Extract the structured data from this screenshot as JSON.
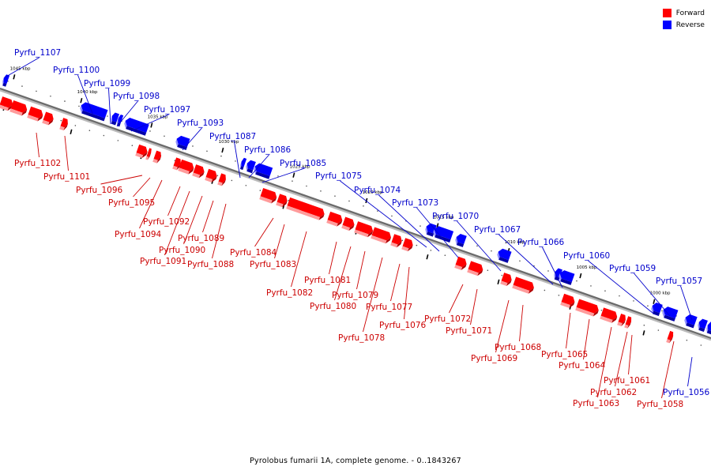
{
  "legend": {
    "forward_label": "Forward",
    "reverse_label": "Reverse",
    "forward_color": "#ff0000",
    "reverse_color": "#0000ff"
  },
  "caption": "Pyrolobus fumarii 1A, complete genome. - 0..1843267",
  "scale_labels": [
    "1045 kbp",
    "1040 kbp",
    "1035 kbp",
    "1030 kbp",
    "1025 kbp",
    "1020 kbp",
    "1015 kbp",
    "1010 kbp",
    "1005 kbp",
    "1000 kbp"
  ],
  "genes": [
    {
      "name": "Pyrfu_1107",
      "strand": "reverse"
    },
    {
      "name": "Pyrfu_1102",
      "strand": "forward"
    },
    {
      "name": "Pyrfu_1101",
      "strand": "forward"
    },
    {
      "name": "Pyrfu_1100",
      "strand": "reverse"
    },
    {
      "name": "Pyrfu_1099",
      "strand": "reverse"
    },
    {
      "name": "Pyrfu_1098",
      "strand": "reverse"
    },
    {
      "name": "Pyrfu_1097",
      "strand": "reverse"
    },
    {
      "name": "Pyrfu_1096",
      "strand": "forward"
    },
    {
      "name": "Pyrfu_1095",
      "strand": "forward"
    },
    {
      "name": "Pyrfu_1094",
      "strand": "forward"
    },
    {
      "name": "Pyrfu_1093",
      "strand": "reverse"
    },
    {
      "name": "Pyrfu_1092",
      "strand": "forward"
    },
    {
      "name": "Pyrfu_1091",
      "strand": "forward"
    },
    {
      "name": "Pyrfu_1090",
      "strand": "forward"
    },
    {
      "name": "Pyrfu_1089",
      "strand": "forward"
    },
    {
      "name": "Pyrfu_1088",
      "strand": "forward"
    },
    {
      "name": "Pyrfu_1087",
      "strand": "reverse"
    },
    {
      "name": "Pyrfu_1086",
      "strand": "reverse"
    },
    {
      "name": "Pyrfu_1085",
      "strand": "reverse"
    },
    {
      "name": "Pyrfu_1084",
      "strand": "forward"
    },
    {
      "name": "Pyrfu_1083",
      "strand": "forward"
    },
    {
      "name": "Pyrfu_1082",
      "strand": "forward"
    },
    {
      "name": "Pyrfu_1081",
      "strand": "forward"
    },
    {
      "name": "Pyrfu_1080",
      "strand": "forward"
    },
    {
      "name": "Pyrfu_1079",
      "strand": "forward"
    },
    {
      "name": "Pyrfu_1078",
      "strand": "forward"
    },
    {
      "name": "Pyrfu_1077",
      "strand": "forward"
    },
    {
      "name": "Pyrfu_1076",
      "strand": "forward"
    },
    {
      "name": "Pyrfu_1075",
      "strand": "reverse"
    },
    {
      "name": "Pyrfu_1074",
      "strand": "reverse"
    },
    {
      "name": "Pyrfu_1073",
      "strand": "reverse"
    },
    {
      "name": "Pyrfu_1072",
      "strand": "forward"
    },
    {
      "name": "Pyrfu_1071",
      "strand": "forward"
    },
    {
      "name": "Pyrfu_1070",
      "strand": "reverse"
    },
    {
      "name": "Pyrfu_1069",
      "strand": "forward"
    },
    {
      "name": "Pyrfu_1068",
      "strand": "forward"
    },
    {
      "name": "Pyrfu_1067",
      "strand": "reverse"
    },
    {
      "name": "Pyrfu_1066",
      "strand": "reverse"
    },
    {
      "name": "Pyrfu_1065",
      "strand": "forward"
    },
    {
      "name": "Pyrfu_1064",
      "strand": "forward"
    },
    {
      "name": "Pyrfu_1063",
      "strand": "forward"
    },
    {
      "name": "Pyrfu_1062",
      "strand": "forward"
    },
    {
      "name": "Pyrfu_1061",
      "strand": "forward"
    },
    {
      "name": "Pyrfu_1060",
      "strand": "reverse"
    },
    {
      "name": "Pyrfu_1059",
      "strand": "reverse"
    },
    {
      "name": "Pyrfu_1058",
      "strand": "forward"
    },
    {
      "name": "Pyrfu_1057",
      "strand": "reverse"
    },
    {
      "name": "Pyrfu_1056",
      "strand": "reverse"
    }
  ]
}
